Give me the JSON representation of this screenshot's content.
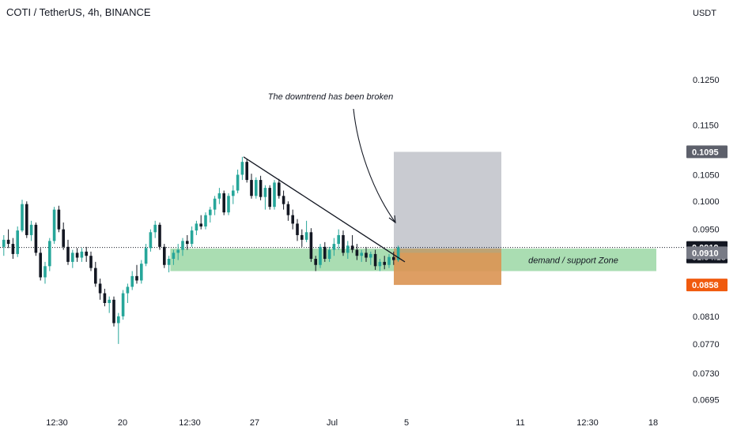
{
  "header": {
    "title": "COTI / TetherUS, 4h, BINANCE"
  },
  "chart_data": {
    "type": "candlestick",
    "symbol": "COTI / TetherUS",
    "interval": "4h",
    "exchange": "BINANCE",
    "currency_label": "USDT",
    "y_scale": "log",
    "ylim": [
      0.0672,
      0.1385
    ],
    "price_ticks": [
      "0.1250",
      "0.1150",
      "0.1050",
      "0.1000",
      "0.0950",
      "0.0810",
      "0.0770",
      "0.0730",
      "0.0695"
    ],
    "x_ticks": [
      "12:30",
      "20",
      "12:30",
      "27",
      "Jul",
      "5",
      "11",
      "12:30",
      "18"
    ],
    "price_badges": [
      {
        "value": "0.1095",
        "bg": "#5d606b"
      },
      {
        "value": "0.0919",
        "sub": "01:04:18",
        "bg": "#131722"
      },
      {
        "value": "0.0910",
        "bg": "#787b86"
      },
      {
        "value": "0.0858",
        "bg": "#f05a0e"
      }
    ],
    "last_price": 0.0919,
    "demand_zone": {
      "label": "demand / support Zone",
      "low": 0.088,
      "high": 0.0917,
      "color": "#a5dbae"
    },
    "long_position": {
      "entry": 0.091,
      "target": 0.1095,
      "stop": 0.0858
    },
    "annotation": "The downtrend has been broken",
    "trendline": {
      "from": 0.1085,
      "to": 0.0895
    },
    "colors": {
      "up": "#26a69a",
      "down": "#131722"
    },
    "candles": [
      [
        0.092,
        0.094,
        0.0905,
        0.0932
      ],
      [
        0.0932,
        0.095,
        0.0918,
        0.0925
      ],
      [
        0.0925,
        0.0935,
        0.09,
        0.0908
      ],
      [
        0.0908,
        0.0955,
        0.0903,
        0.0948
      ],
      [
        0.0948,
        0.1003,
        0.0945,
        0.0995
      ],
      [
        0.0995,
        0.1,
        0.0935,
        0.094
      ],
      [
        0.094,
        0.0965,
        0.093,
        0.0958
      ],
      [
        0.0958,
        0.0962,
        0.0905,
        0.091
      ],
      [
        0.091,
        0.0918,
        0.0865,
        0.087
      ],
      [
        0.087,
        0.0895,
        0.086,
        0.0888
      ],
      [
        0.0888,
        0.0935,
        0.088,
        0.093
      ],
      [
        0.093,
        0.099,
        0.0925,
        0.0985
      ],
      [
        0.0985,
        0.0992,
        0.0945,
        0.095
      ],
      [
        0.095,
        0.0962,
        0.0915,
        0.092
      ],
      [
        0.092,
        0.0932,
        0.089,
        0.0895
      ],
      [
        0.0895,
        0.0915,
        0.0885,
        0.091
      ],
      [
        0.091,
        0.0918,
        0.0895,
        0.0902
      ],
      [
        0.0902,
        0.0918,
        0.0895,
        0.0912
      ],
      [
        0.0912,
        0.092,
        0.0895,
        0.0905
      ],
      [
        0.0905,
        0.0912,
        0.088,
        0.0885
      ],
      [
        0.0885,
        0.0895,
        0.0855,
        0.086
      ],
      [
        0.086,
        0.0868,
        0.0835,
        0.0845
      ],
      [
        0.0845,
        0.0852,
        0.0825,
        0.083
      ],
      [
        0.083,
        0.084,
        0.0815,
        0.0835
      ],
      [
        0.0835,
        0.084,
        0.0795,
        0.08
      ],
      [
        0.08,
        0.0815,
        0.077,
        0.081
      ],
      [
        0.081,
        0.085,
        0.0805,
        0.0845
      ],
      [
        0.0845,
        0.086,
        0.083,
        0.0855
      ],
      [
        0.0855,
        0.088,
        0.085,
        0.0872
      ],
      [
        0.0872,
        0.089,
        0.086,
        0.0865
      ],
      [
        0.0865,
        0.0898,
        0.086,
        0.0892
      ],
      [
        0.0892,
        0.0925,
        0.0888,
        0.0918
      ],
      [
        0.0918,
        0.095,
        0.0912,
        0.0945
      ],
      [
        0.0945,
        0.0965,
        0.0935,
        0.0958
      ],
      [
        0.0958,
        0.0962,
        0.0915,
        0.092
      ],
      [
        0.092,
        0.0925,
        0.0885,
        0.089
      ],
      [
        0.089,
        0.0905,
        0.0878,
        0.09
      ],
      [
        0.09,
        0.0915,
        0.089,
        0.091
      ],
      [
        0.091,
        0.0925,
        0.0898,
        0.0915
      ],
      [
        0.0915,
        0.0935,
        0.0905,
        0.093
      ],
      [
        0.093,
        0.094,
        0.0915,
        0.0925
      ],
      [
        0.0925,
        0.0955,
        0.092,
        0.0948
      ],
      [
        0.0948,
        0.0965,
        0.094,
        0.096
      ],
      [
        0.096,
        0.0975,
        0.095,
        0.0955
      ],
      [
        0.0955,
        0.098,
        0.095,
        0.0975
      ],
      [
        0.0975,
        0.099,
        0.0962,
        0.0985
      ],
      [
        0.0985,
        0.101,
        0.0975,
        0.1005
      ],
      [
        0.1005,
        0.1025,
        0.0995,
        0.1015
      ],
      [
        0.1015,
        0.102,
        0.0975,
        0.098
      ],
      [
        0.098,
        0.1015,
        0.0975,
        0.101
      ],
      [
        0.101,
        0.103,
        0.0995,
        0.102
      ],
      [
        0.102,
        0.106,
        0.1015,
        0.105
      ],
      [
        0.105,
        0.1085,
        0.104,
        0.1075
      ],
      [
        0.1075,
        0.108,
        0.1035,
        0.104
      ],
      [
        0.104,
        0.1052,
        0.1005,
        0.101
      ],
      [
        0.101,
        0.1045,
        0.1005,
        0.104
      ],
      [
        0.104,
        0.1048,
        0.1002,
        0.1008
      ],
      [
        0.1008,
        0.103,
        0.0985,
        0.1025
      ],
      [
        0.1025,
        0.103,
        0.0985,
        0.099
      ],
      [
        0.099,
        0.104,
        0.0985,
        0.1035
      ],
      [
        0.1035,
        0.1042,
        0.1005,
        0.101
      ],
      [
        0.101,
        0.102,
        0.0985,
        0.0995
      ],
      [
        0.0995,
        0.1,
        0.0965,
        0.0975
      ],
      [
        0.0975,
        0.0985,
        0.095,
        0.096
      ],
      [
        0.096,
        0.0968,
        0.093,
        0.094
      ],
      [
        0.094,
        0.095,
        0.092,
        0.0932
      ],
      [
        0.0932,
        0.0965,
        0.0928,
        0.0945
      ],
      [
        0.0945,
        0.0952,
        0.0895,
        0.09
      ],
      [
        0.09,
        0.0905,
        0.088,
        0.089
      ],
      [
        0.089,
        0.0925,
        0.0885,
        0.092
      ],
      [
        0.092,
        0.0928,
        0.0895,
        0.09
      ],
      [
        0.09,
        0.092,
        0.0895,
        0.0915
      ],
      [
        0.0915,
        0.0935,
        0.0905,
        0.0925
      ],
      [
        0.0925,
        0.095,
        0.0915,
        0.094
      ],
      [
        0.094,
        0.0948,
        0.0905,
        0.091
      ],
      [
        0.091,
        0.093,
        0.09,
        0.0922
      ],
      [
        0.0922,
        0.094,
        0.091,
        0.0915
      ],
      [
        0.0915,
        0.0925,
        0.0898,
        0.0905
      ],
      [
        0.0905,
        0.0915,
        0.0895,
        0.091
      ],
      [
        0.091,
        0.092,
        0.0895,
        0.0902
      ],
      [
        0.0902,
        0.0912,
        0.089,
        0.0908
      ],
      [
        0.0908,
        0.0915,
        0.0882,
        0.0888
      ],
      [
        0.0888,
        0.09,
        0.088,
        0.0895
      ],
      [
        0.0895,
        0.0905,
        0.0883,
        0.089
      ],
      [
        0.089,
        0.0908,
        0.0885,
        0.0903
      ],
      [
        0.0903,
        0.0912,
        0.089,
        0.0898
      ],
      [
        0.0898,
        0.0922,
        0.0895,
        0.0919
      ]
    ]
  }
}
